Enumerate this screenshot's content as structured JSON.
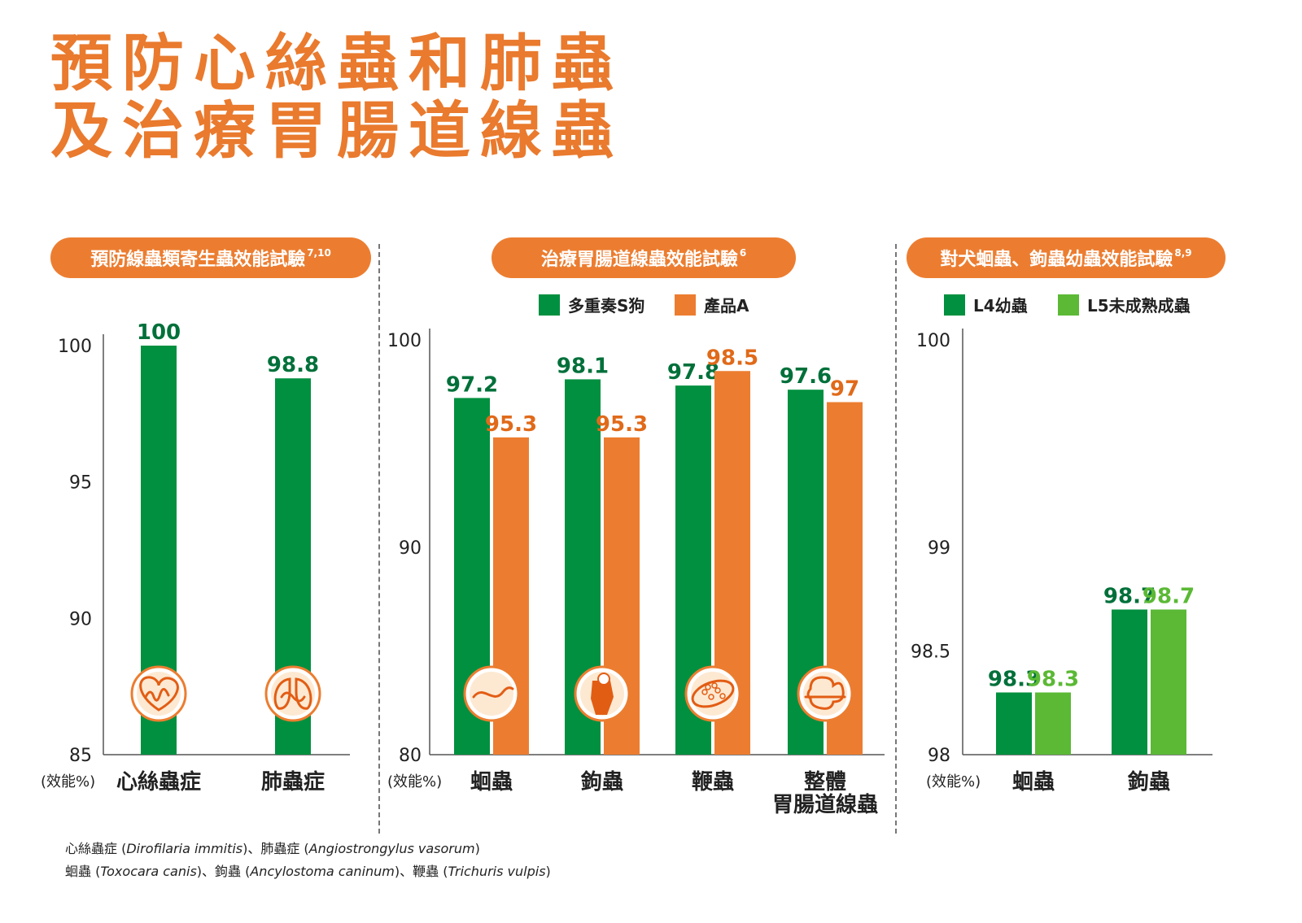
{
  "title": {
    "line1": "預防心絲蟲和肺蟲",
    "line2": "及治療胃腸道線蟲"
  },
  "panels": [
    {
      "heading": "預防線蟲類寄生蟲效能試驗",
      "sup": "7,10"
    },
    {
      "heading": "治療胃腸道線蟲效能試驗",
      "sup": "6"
    },
    {
      "heading": "對犬蛔蟲、鉤蟲幼蟲效能試驗",
      "sup": "8,9"
    }
  ],
  "axis_unit_label": "(效能%)",
  "colors": {
    "green": "#009040",
    "orange": "#ec7d30",
    "lightgreen": "#5bb935",
    "title_orange": "#e97a2e"
  },
  "chart_data": [
    {
      "type": "bar",
      "categories": [
        "心絲蟲症",
        "肺蟲症"
      ],
      "series": [
        {
          "values": [
            100,
            98.8
          ],
          "color": "#009040"
        }
      ],
      "ylim": [
        85,
        100
      ],
      "yticks": [
        85,
        90,
        95,
        100
      ],
      "ylabel": "(效能%)",
      "icons": [
        "heart-worm-icon",
        "lung-worm-icon"
      ]
    },
    {
      "type": "bar",
      "categories": [
        "蛔蟲",
        "鉤蟲",
        "鞭蟲",
        "整體胃腸道線蟲"
      ],
      "category_lines": [
        [
          "蛔蟲"
        ],
        [
          "鉤蟲"
        ],
        [
          "鞭蟲"
        ],
        [
          "整體",
          "胃腸道線蟲"
        ]
      ],
      "series": [
        {
          "name": "多重奏S狗",
          "values": [
            97.2,
            98.1,
            97.8,
            97.6
          ],
          "color": "#009040"
        },
        {
          "name": "產品A",
          "values": [
            95.3,
            95.3,
            98.5,
            97
          ],
          "color": "#ec7d30"
        }
      ],
      "ylim": [
        80,
        100
      ],
      "yticks": [
        80,
        90,
        100
      ],
      "ylabel": "(效能%)",
      "legend": "top",
      "icons": [
        "roundworm-icon",
        "hookworm-icon",
        "whipworm-egg-icon",
        "intestine-icon"
      ]
    },
    {
      "type": "bar",
      "categories": [
        "蛔蟲",
        "鉤蟲"
      ],
      "series": [
        {
          "name": "L4幼蟲",
          "values": [
            98.3,
            98.7
          ],
          "color": "#009040"
        },
        {
          "name": "L5未成熟成蟲",
          "values": [
            98.3,
            98.7
          ],
          "color": "#5bb935"
        }
      ],
      "ylim": [
        98,
        100
      ],
      "yticks": [
        98,
        98.5,
        99,
        100
      ],
      "ylabel": "(效能%)",
      "legend": "top"
    }
  ],
  "footnotes": {
    "line1": [
      {
        "t": "心絲蟲症 (",
        "i": false
      },
      {
        "t": "Dirofilaria immitis",
        "i": true
      },
      {
        "t": ")、肺蟲症 (",
        "i": false
      },
      {
        "t": "Angiostrongylus vasorum",
        "i": true
      },
      {
        "t": ")",
        "i": false
      }
    ],
    "line2": [
      {
        "t": "蛔蟲 (",
        "i": false
      },
      {
        "t": "Toxocara canis",
        "i": true
      },
      {
        "t": ")、鉤蟲 (",
        "i": false
      },
      {
        "t": "Ancylostoma caninum",
        "i": true
      },
      {
        "t": ")、鞭蟲 (",
        "i": false
      },
      {
        "t": "Trichuris vulpis",
        "i": true
      },
      {
        "t": ")",
        "i": false
      }
    ]
  }
}
